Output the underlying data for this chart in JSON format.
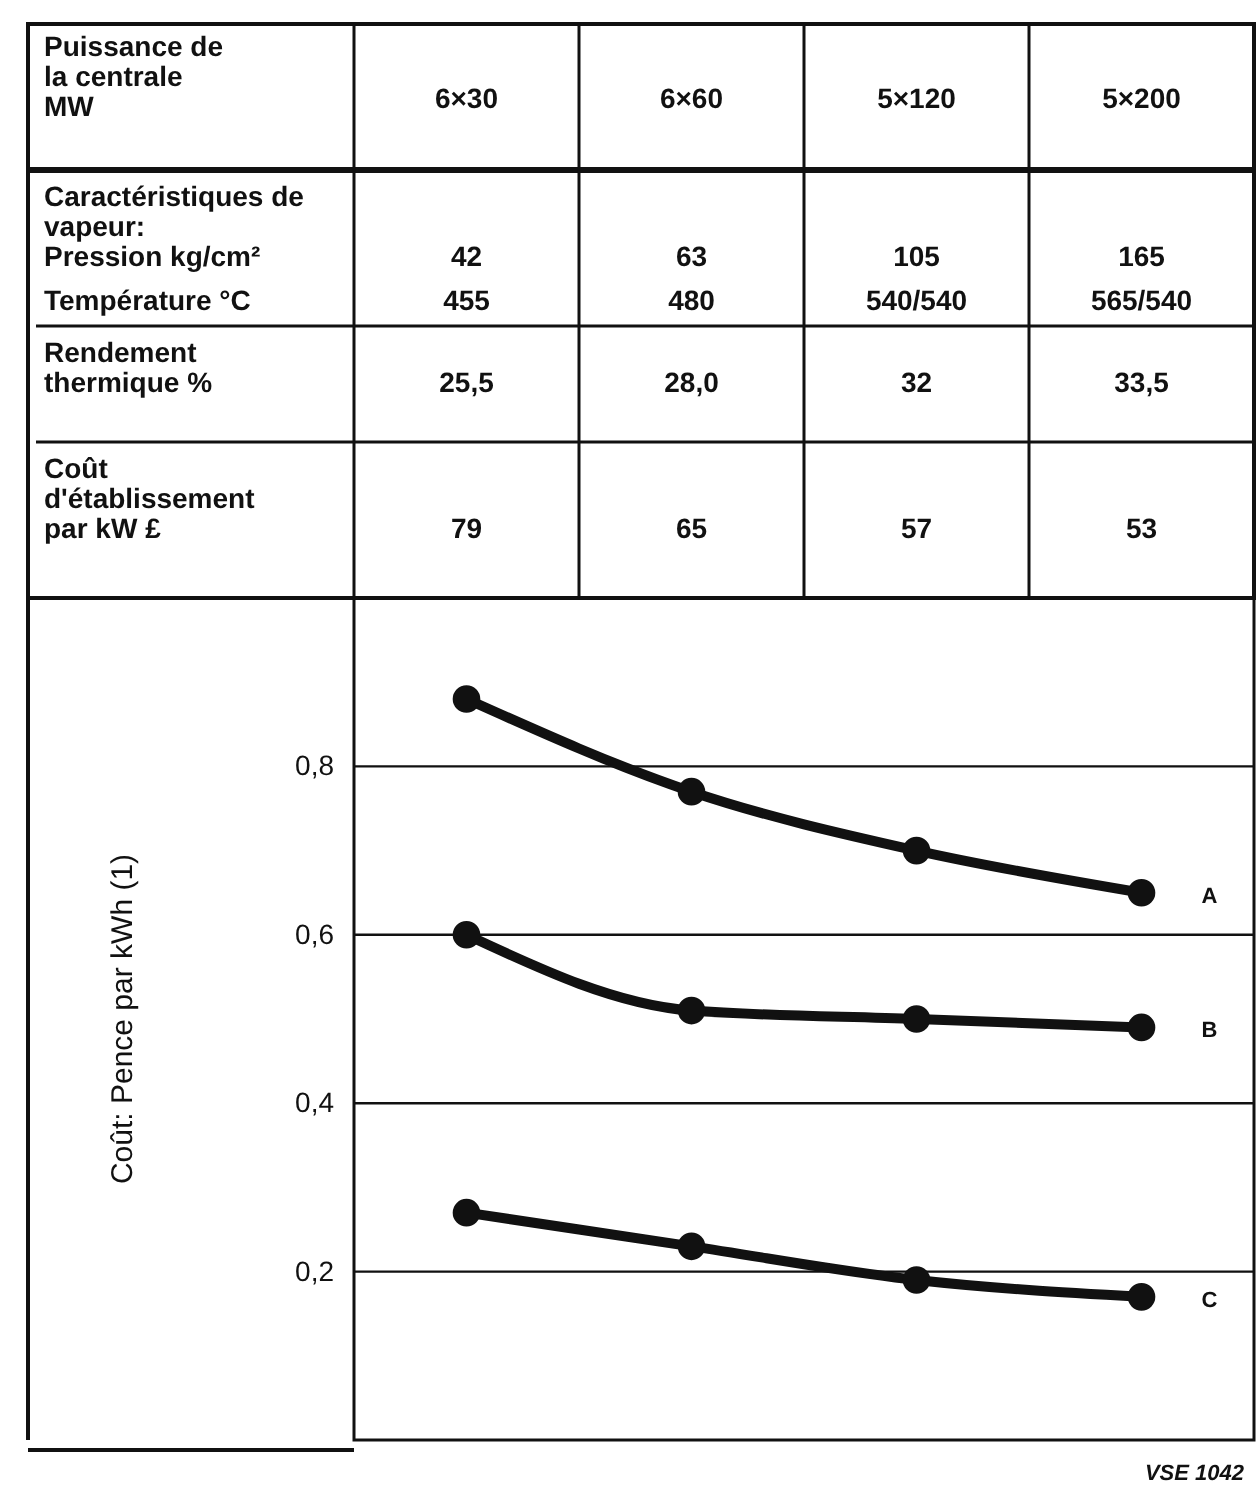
{
  "chart_data": [
    {
      "type": "other",
      "xlabel": "Puissance de la centrale MW",
      "categories": [
        "6×30",
        "6×60",
        "5×120",
        "5×200"
      ],
      "y_categories": [
        "Caractéristiques de vapeur:",
        "Pression kg/cm²",
        "Température °C",
        "Rendement thermique %",
        "Coût d'établissement par kW £"
      ],
      "cell_labels": [
        [
          null,
          null,
          null,
          null
        ],
        [
          "42",
          "63",
          "105",
          "165"
        ],
        [
          "455",
          "480",
          "540/540",
          "565/540"
        ],
        [
          "25,5",
          "28,0",
          "32",
          "33,5"
        ],
        [
          "79",
          "65",
          "57",
          "53"
        ]
      ]
    },
    {
      "type": "line",
      "ylabel": "Coût: Pence par kWh (1)",
      "categories": [
        null,
        null,
        null,
        null
      ],
      "series": [
        {
          "name": "A",
          "color": "#111111",
          "values": [
            0.88,
            0.77,
            0.7,
            0.65
          ]
        },
        {
          "name": "B",
          "color": "#111111",
          "values": [
            0.6,
            0.51,
            0.5,
            0.49
          ]
        },
        {
          "name": "C",
          "color": "#111111",
          "values": [
            0.27,
            0.23,
            0.19,
            0.17
          ]
        }
      ],
      "ylim": [
        0,
        1
      ],
      "yticks": [
        {
          "value": 0.2,
          "label": "0,2"
        },
        {
          "value": 0.4,
          "label": "0,4"
        },
        {
          "value": 0.6,
          "label": "0,6"
        },
        {
          "value": 0.8,
          "label": "0,8"
        }
      ],
      "grid": "y",
      "marker": "circle",
      "line_style": "solid",
      "tick_labels": "y",
      "annotations": [
        "VSE 1042"
      ]
    }
  ]
}
